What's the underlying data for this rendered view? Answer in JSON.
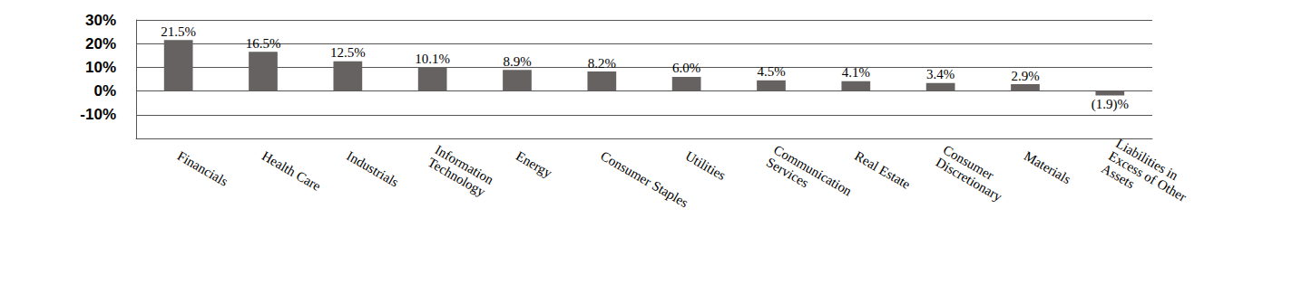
{
  "chart_data": {
    "type": "bar",
    "categories": [
      "Financials",
      "Health Care",
      "Industrials",
      "Information Technology",
      "Energy",
      "Consumer Staples",
      "Utilities",
      "Communication Services",
      "Real Estate",
      "Consumer Discretionary",
      "Materials",
      "Liabilities in Excess of Other Assets"
    ],
    "values": [
      21.5,
      16.5,
      12.5,
      10.1,
      8.9,
      8.2,
      6.0,
      4.5,
      4.1,
      3.4,
      2.9,
      -1.9
    ],
    "value_labels": [
      "21.5%",
      "16.5%",
      "12.5%",
      "10.1%",
      "8.9%",
      "8.2%",
      "6.0%",
      "4.5%",
      "4.1%",
      "3.4%",
      "2.9%",
      "(1.9)%"
    ],
    "color": "#666262",
    "ylim": [
      -20,
      30
    ],
    "yticks": [
      {
        "value": -10,
        "label": "-10%"
      },
      {
        "value": 0,
        "label": "0%"
      },
      {
        "value": 10,
        "label": "10%"
      },
      {
        "value": 20,
        "label": "20%"
      },
      {
        "value": 30,
        "label": "30%"
      }
    ],
    "grid": true,
    "data_labels": true
  }
}
